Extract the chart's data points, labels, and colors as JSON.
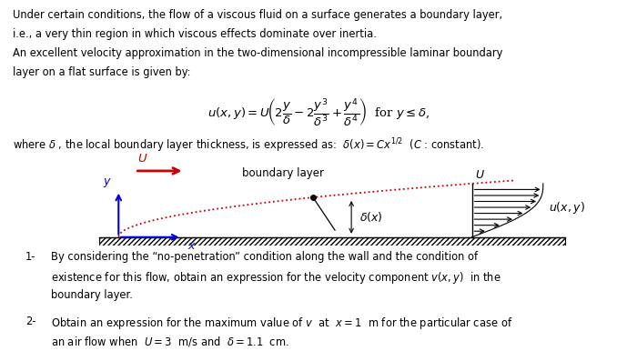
{
  "bg_color": "#ffffff",
  "text_color": "#000000",
  "fig_width": 7.0,
  "fig_height": 3.86,
  "dpi": 100,
  "paragraph1_lines": [
    "Under certain conditions, the flow of a viscous fluid on a surface generates a boundary layer,",
    "i.e., a very thin region in which viscous effects dominate over inertia.",
    "An excellent velocity approximation in the two-dimensional incompressible laminar boundary",
    "layer on a flat surface is given by:"
  ],
  "equation": "$u(x,y) = U\\!\\left(2\\dfrac{y}{\\delta} - 2\\dfrac{y^3}{\\delta^3} + \\dfrac{y^4}{\\delta^4}\\right)$  for $y \\leq \\delta$,",
  "paragraph2": "where $\\delta$ , the local boundary layer thickness, is expressed as:  $\\delta(x) = Cx^{1/2}$  ($C$ : constant).",
  "item1_prefix": "1- ",
  "item1_line1": " By considering the “no-penetration” condition along the wall and the condition of",
  "item1_line2": "     existence for this flow, obtain an expression for the velocity component $v(x, y)$  in the",
  "item1_line3": "     boundary layer.",
  "item2_prefix": "2- ",
  "item2_line1": "  Obtain an expression for the maximum value of $v$  at  $x = 1$  m for the particular case of",
  "item2_line2": "     an air flow when  $U = 3$  m/s and  $\\delta = 1.1$  cm.",
  "arrow_color": "#cc0000",
  "axis_color": "#0000dd",
  "dotted_line_color": "#cc0000",
  "ground_hatch_color": "#555555",
  "boundary_layer_label": "boundary layer",
  "delta_label": "$\\delta(x)$",
  "u_italic_label": "$U$",
  "ux_label": "$u(x,y)$",
  "y_label": "$y$",
  "x_label": "$x$"
}
